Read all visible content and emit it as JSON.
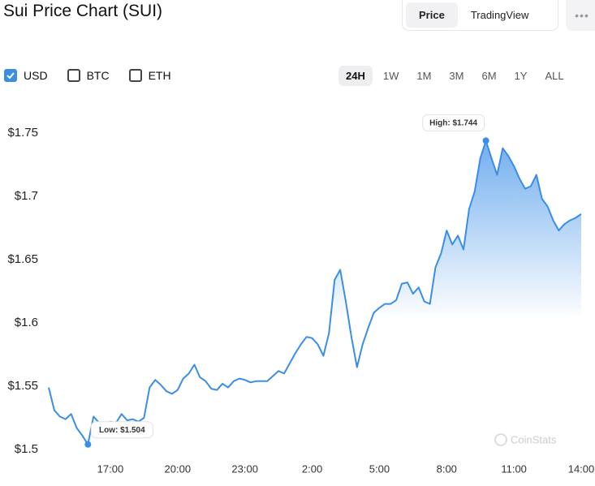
{
  "header": {
    "title": "Sui Price Chart (SUI)",
    "tabs": [
      {
        "label": "Price",
        "active": true
      },
      {
        "label": "TradingView",
        "active": false
      }
    ],
    "menu": "•••"
  },
  "currencies": [
    {
      "label": "USD",
      "checked": true
    },
    {
      "label": "BTC",
      "checked": false
    },
    {
      "label": "ETH",
      "checked": false
    }
  ],
  "ranges": [
    {
      "label": "24H",
      "active": true
    },
    {
      "label": "1W",
      "active": false
    },
    {
      "label": "1M",
      "active": false
    },
    {
      "label": "3M",
      "active": false
    },
    {
      "label": "6M",
      "active": false
    },
    {
      "label": "1Y",
      "active": false
    },
    {
      "label": "ALL",
      "active": false
    }
  ],
  "chart_data": {
    "type": "area",
    "color": "#3b8ee8",
    "grid": false,
    "watermark": "CoinStats",
    "x": [
      14.25,
      14.5,
      14.75,
      15,
      15.25,
      15.5,
      15.75,
      16,
      16.25,
      16.5,
      16.75,
      17,
      17.25,
      17.5,
      17.75,
      18,
      18.25,
      18.5,
      18.75,
      19,
      19.25,
      19.5,
      19.75,
      20,
      20.25,
      20.5,
      20.75,
      21,
      21.25,
      21.5,
      21.75,
      22,
      22.25,
      22.5,
      22.75,
      23,
      23.25,
      23.5,
      23.75,
      24,
      24.25,
      24.5,
      24.75,
      25,
      25.25,
      25.5,
      25.75,
      26,
      26.25,
      26.5,
      26.75,
      27,
      27.25,
      27.5,
      27.75,
      28,
      28.25,
      28.5,
      28.75,
      29,
      29.25,
      29.5,
      29.75,
      30,
      30.25,
      30.5,
      30.75,
      31,
      31.25,
      31.5,
      31.75,
      32,
      32.25,
      32.5,
      32.75,
      33,
      33.25,
      33.5,
      33.75,
      34,
      34.25,
      34.5,
      34.75,
      35,
      35.25,
      35.5,
      35.75,
      36,
      36.25,
      36.5,
      36.75,
      37,
      37.25,
      37.5,
      37.75,
      38
    ],
    "values": [
      1.549,
      1.531,
      1.526,
      1.524,
      1.528,
      1.517,
      1.511,
      1.504,
      1.526,
      1.521,
      1.519,
      1.522,
      1.521,
      1.528,
      1.523,
      1.524,
      1.522,
      1.525,
      1.549,
      1.555,
      1.551,
      1.546,
      1.544,
      1.547,
      1.556,
      1.56,
      1.567,
      1.557,
      1.554,
      1.548,
      1.547,
      1.552,
      1.549,
      1.554,
      1.556,
      1.555,
      1.553,
      1.554,
      1.554,
      1.554,
      1.558,
      1.562,
      1.56,
      1.568,
      1.576,
      1.583,
      1.589,
      1.588,
      1.583,
      1.574,
      1.592,
      1.634,
      1.642,
      1.617,
      1.589,
      1.565,
      1.583,
      1.596,
      1.608,
      1.612,
      1.615,
      1.615,
      1.618,
      1.631,
      1.632,
      1.623,
      1.628,
      1.617,
      1.615,
      1.644,
      1.655,
      1.673,
      1.662,
      1.669,
      1.658,
      1.69,
      1.704,
      1.73,
      1.744,
      1.73,
      1.717,
      1.738,
      1.732,
      1.724,
      1.714,
      1.706,
      1.708,
      1.717,
      1.698,
      1.692,
      1.681,
      1.673,
      1.678,
      1.681,
      1.683,
      1.686
    ],
    "xlim": [
      14.25,
      38
    ],
    "xticks": [
      {
        "value": 17,
        "label": "17:00"
      },
      {
        "value": 20,
        "label": "20:00"
      },
      {
        "value": 23,
        "label": "23:00"
      },
      {
        "value": 26,
        "label": "2:00"
      },
      {
        "value": 29,
        "label": "5:00"
      },
      {
        "value": 32,
        "label": "8:00"
      },
      {
        "value": 35,
        "label": "11:00"
      },
      {
        "value": 38,
        "label": "14:00"
      }
    ],
    "ylim": [
      1.5,
      1.75
    ],
    "yticks": [
      {
        "value": 1.5,
        "label": "$1.5"
      },
      {
        "value": 1.55,
        "label": "$1.55"
      },
      {
        "value": 1.6,
        "label": "$1.6"
      },
      {
        "value": 1.65,
        "label": "$1.65"
      },
      {
        "value": 1.7,
        "label": "$1.7"
      },
      {
        "value": 1.75,
        "label": "$1.75"
      }
    ],
    "annotations": [
      {
        "label": "High: $1.744",
        "value": 1.744
      },
      {
        "label": "Low: $1.504",
        "value": 1.504
      }
    ]
  }
}
